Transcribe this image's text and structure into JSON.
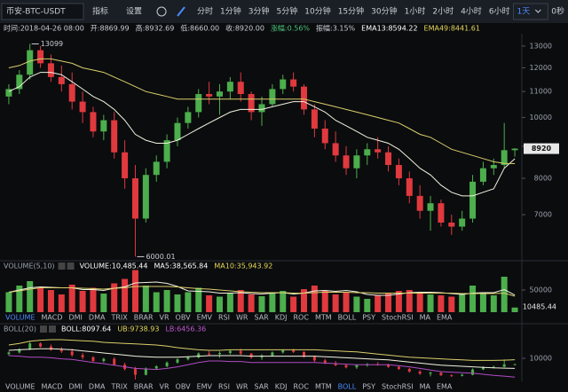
{
  "toolbar": {
    "symbol": "币安-BTC-USDT",
    "buttons": [
      "指标",
      "设置"
    ],
    "intervals": [
      "分时",
      "1分钟",
      "3分钟",
      "5分钟",
      "10分钟",
      "15分钟",
      "30分钟",
      "1小时",
      "2小时",
      "4小时",
      "6小时",
      "1天"
    ],
    "active_interval": "1天",
    "right": "0秒"
  },
  "info_line": [
    {
      "text": "时间:2018-04-26 08:00",
      "color": "#c9ced6"
    },
    {
      "text": "开:8869.99",
      "color": "#c9ced6"
    },
    {
      "text": "高:8932.69",
      "color": "#c9ced6"
    },
    {
      "text": "低:8660.00",
      "color": "#c9ced6"
    },
    {
      "text": "收:8920.00",
      "color": "#c9ced6"
    },
    {
      "text": "涨幅:0.56%",
      "color": "#4cc17a"
    },
    {
      "text": "振幅:3.15%",
      "color": "#c9ced6"
    },
    {
      "text": "EMA13:8594.22",
      "color": "#ffffff"
    },
    {
      "text": "EMA49:8441.61",
      "color": "#e6d85a"
    }
  ],
  "chart_data": [
    {
      "type": "candlestick",
      "log_scale": true,
      "grid": false,
      "up_color": "#4cae4c",
      "down_color": "#e0393e",
      "categories": [
        null,
        null,
        null,
        null,
        null,
        null,
        null,
        null,
        null,
        null,
        null,
        null,
        null,
        null,
        null,
        null,
        null,
        null,
        null,
        null,
        null,
        null,
        null,
        null,
        null,
        null,
        null,
        null,
        null,
        null,
        null,
        null,
        null,
        null,
        null,
        null,
        null,
        null,
        null,
        null,
        null,
        null,
        null,
        null,
        null,
        null,
        null,
        null,
        null
      ],
      "candles": [
        [
          10800,
          11300,
          10500,
          11100
        ],
        [
          11100,
          11900,
          10900,
          11700
        ],
        [
          11700,
          13099,
          11500,
          12800
        ],
        [
          12800,
          13000,
          12000,
          12200
        ],
        [
          12200,
          12600,
          11400,
          11600
        ],
        [
          11600,
          12100,
          11000,
          11300
        ],
        [
          11300,
          11800,
          10300,
          10600
        ],
        [
          10600,
          11000,
          9800,
          10200
        ],
        [
          10200,
          10400,
          9300,
          9500
        ],
        [
          9500,
          10100,
          9200,
          9900
        ],
        [
          9900,
          10200,
          8600,
          8800
        ],
        [
          8800,
          9200,
          7700,
          8000
        ],
        [
          8000,
          8400,
          6000.01,
          6900
        ],
        [
          6900,
          8300,
          6800,
          8100
        ],
        [
          8100,
          8700,
          7900,
          8500
        ],
        [
          8500,
          9400,
          8300,
          9200
        ],
        [
          9200,
          10000,
          9000,
          9800
        ],
        [
          9800,
          10400,
          9600,
          10200
        ],
        [
          10200,
          11100,
          10000,
          10900
        ],
        [
          10900,
          11400,
          10500,
          10800
        ],
        [
          10800,
          11300,
          10100,
          11000
        ],
        [
          11000,
          11600,
          10700,
          11400
        ],
        [
          11400,
          11800,
          10600,
          10900
        ],
        [
          10900,
          11000,
          9900,
          10200
        ],
        [
          10200,
          10800,
          9700,
          10500
        ],
        [
          10500,
          11300,
          10400,
          11100
        ],
        [
          11100,
          11700,
          10900,
          11500
        ],
        [
          11500,
          11800,
          11000,
          11200
        ],
        [
          11200,
          11300,
          10100,
          10300
        ],
        [
          10300,
          10500,
          9300,
          9600
        ],
        [
          9600,
          9900,
          8900,
          9100
        ],
        [
          9100,
          9500,
          8500,
          8700
        ],
        [
          8700,
          9000,
          8100,
          8300
        ],
        [
          8300,
          8900,
          8000,
          8700
        ],
        [
          8700,
          9100,
          8400,
          8900
        ],
        [
          8900,
          9300,
          8600,
          8800
        ],
        [
          8800,
          9000,
          8200,
          8400
        ],
        [
          8400,
          8600,
          7800,
          8000
        ],
        [
          8000,
          8200,
          7300,
          7500
        ],
        [
          7500,
          7800,
          6900,
          7100
        ],
        [
          7100,
          7500,
          6600,
          7300
        ],
        [
          7300,
          7400,
          6700,
          6800
        ],
        [
          6800,
          7000,
          6500,
          6700
        ],
        [
          6700,
          7100,
          6600,
          6900
        ],
        [
          6900,
          8100,
          6800,
          7900
        ],
        [
          7900,
          8500,
          7800,
          8300
        ],
        [
          8300,
          8600,
          8100,
          8400
        ],
        [
          8400,
          9800,
          8300,
          8869.99
        ],
        [
          8869.99,
          8932.69,
          8660,
          8920
        ]
      ],
      "series": [
        {
          "color": "#f2f2e0",
          "values": [
            11000,
            11200,
            11600,
            11800,
            11800,
            11700,
            11400,
            11100,
            10800,
            10600,
            10300,
            9900,
            9400,
            9200,
            9100,
            9100,
            9200,
            9400,
            9600,
            9800,
            10000,
            10200,
            10300,
            10300,
            10300,
            10400,
            10500,
            10600,
            10600,
            10400,
            10200,
            9900,
            9700,
            9500,
            9300,
            9200,
            9100,
            8900,
            8600,
            8300,
            8100,
            7800,
            7600,
            7500,
            7500,
            7600,
            7700,
            8300,
            8594.22
          ]
        },
        {
          "color": "#d9cf6a",
          "values": [
            12000,
            12100,
            12300,
            12400,
            12400,
            12300,
            12200,
            12000,
            11900,
            11800,
            11600,
            11400,
            11200,
            11000,
            10900,
            10800,
            10700,
            10700,
            10700,
            10700,
            10700,
            10700,
            10700,
            10700,
            10700,
            10700,
            10700,
            10700,
            10700,
            10600,
            10500,
            10400,
            10300,
            10200,
            10100,
            10000,
            9900,
            9800,
            9600,
            9400,
            9300,
            9100,
            8900,
            8800,
            8700,
            8600,
            8500,
            8450,
            8441.61
          ]
        }
      ],
      "ylim": [
        5950,
        13600
      ],
      "yticks": [
        7000,
        8000,
        9000,
        10000,
        11000,
        12000,
        13000
      ]
    },
    {
      "type": "bar",
      "title": "VOLUME(5,10)",
      "header": [
        {
          "text": "VOLUME:10,485.44",
          "color": "#ffffff"
        },
        {
          "text": "MA5:38,565.84",
          "color": "#ffffff"
        },
        {
          "text": "MA10:35,943.92",
          "color": "#e6d85a"
        }
      ],
      "values": [
        45000,
        60000,
        70000,
        55000,
        50000,
        40000,
        62000,
        48000,
        55000,
        42000,
        65000,
        75000,
        95000,
        60000,
        45000,
        50000,
        40000,
        45000,
        55000,
        38000,
        35000,
        42000,
        50000,
        40000,
        36000,
        45000,
        48000,
        35000,
        52000,
        60000,
        48000,
        40000,
        45000,
        35000,
        30000,
        38000,
        42000,
        48000,
        50000,
        45000,
        40000,
        38000,
        35000,
        42000,
        60000,
        45000,
        38000,
        80000,
        10485.44
      ],
      "series": [
        {
          "color": "#f2f2e0",
          "values": [
            45000,
            50000,
            55000,
            57000,
            56000,
            55000,
            55000,
            51000,
            51000,
            49000,
            54000,
            57000,
            66000,
            67000,
            68000,
            65000,
            58000,
            48000,
            47000,
            46000,
            43000,
            43000,
            44000,
            42000,
            41000,
            43000,
            44000,
            41000,
            43000,
            48000,
            49000,
            47000,
            49000,
            46000,
            40000,
            38000,
            38000,
            41000,
            44000,
            45000,
            45000,
            44000,
            42000,
            40000,
            43000,
            44000,
            44000,
            51000,
            38565.84
          ]
        },
        {
          "color": "#d9cf6a",
          "values": [
            45000,
            48000,
            52000,
            55000,
            55000,
            55000,
            55000,
            54000,
            53000,
            52000,
            54000,
            55000,
            58000,
            58000,
            58000,
            58000,
            57000,
            55000,
            53000,
            52000,
            50000,
            48000,
            46000,
            45000,
            44000,
            44000,
            44000,
            43000,
            43000,
            44000,
            45000,
            45000,
            45000,
            44000,
            44000,
            43000,
            43000,
            43000,
            43000,
            43000,
            43000,
            43000,
            43000,
            42000,
            42000,
            42000,
            42000,
            43000,
            35943.92
          ]
        }
      ],
      "ylim": [
        0,
        100000
      ],
      "yticks": [
        50000
      ]
    },
    {
      "type": "boll",
      "title": "BOLL(20)",
      "header": [
        {
          "text": "BOLL:8097.64",
          "color": "#ffffff"
        },
        {
          "text": "UB:9738.93",
          "color": "#e6d85a"
        },
        {
          "text": "LB:6456.36",
          "color": "#c05ad0"
        }
      ],
      "series": [
        {
          "color": "#f2f2e0",
          "values": [
            11500,
            11600,
            11700,
            11800,
            11800,
            11700,
            11600,
            11400,
            11200,
            11000,
            10800,
            10600,
            10400,
            10300,
            10200,
            10200,
            10200,
            10300,
            10400,
            10500,
            10500,
            10500,
            10500,
            10400,
            10400,
            10400,
            10400,
            10400,
            10400,
            10400,
            10300,
            10200,
            10100,
            10000,
            9900,
            9800,
            9700,
            9500,
            9300,
            9100,
            8900,
            8700,
            8600,
            8500,
            8400,
            8300,
            8200,
            8150,
            8097.64
          ]
        },
        {
          "color": "#d9cf6a",
          "values": [
            12500,
            12800,
            13200,
            13400,
            13500,
            13500,
            13400,
            13300,
            13200,
            13000,
            12900,
            12800,
            12700,
            12600,
            12500,
            12300,
            12000,
            11800,
            11600,
            11500,
            11500,
            11600,
            11600,
            11600,
            11600,
            11600,
            11600,
            11600,
            11600,
            11600,
            11500,
            11400,
            11300,
            11200,
            11000,
            10800,
            10600,
            10400,
            10200,
            10100,
            10000,
            9900,
            9800,
            9700,
            9600,
            9600,
            9600,
            9650,
            9738.93
          ]
        },
        {
          "color": "#b04cc4",
          "values": [
            10500,
            10400,
            10200,
            10200,
            10100,
            9900,
            9800,
            9500,
            9200,
            9000,
            8700,
            8400,
            8100,
            8000,
            7900,
            8100,
            8400,
            8800,
            9200,
            9500,
            9500,
            9400,
            9400,
            9200,
            9200,
            9200,
            9200,
            9200,
            9200,
            9200,
            9100,
            9000,
            8900,
            8800,
            8800,
            8800,
            8800,
            8600,
            8400,
            8100,
            7800,
            7500,
            7400,
            7300,
            7200,
            7000,
            6800,
            6650,
            6456.36
          ]
        }
      ],
      "ylim": [
        6000,
        14000
      ],
      "yticks": [
        10000
      ]
    }
  ],
  "tabs": [
    "VOLUME",
    "MACD",
    "DMI",
    "DMA",
    "TRIX",
    "BRAR",
    "VR",
    "OBV",
    "EMV",
    "RSI",
    "WR",
    "SAR",
    "KDJ",
    "ROC",
    "MTM",
    "BOLL",
    "PSY",
    "StochRSI",
    "MA",
    "EMA"
  ]
}
